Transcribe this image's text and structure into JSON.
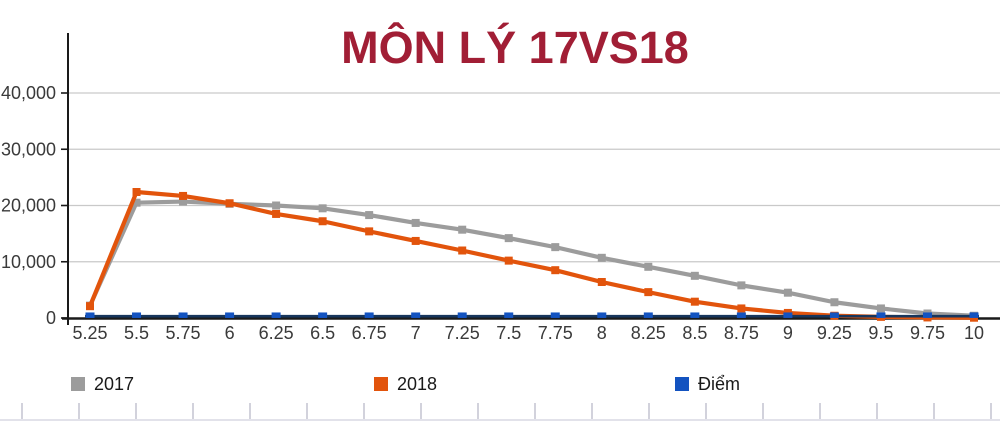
{
  "title": "MÔN LÝ 17VS18",
  "colors": {
    "title": "#A11E35",
    "series_2017": "#9C9C9C",
    "series_2018": "#E2540C",
    "series_diem_marker": "#1353C0",
    "series_diem_line": "#17365D",
    "axis": "#1a1a1a",
    "gridline": "#C9C9C9"
  },
  "legend": {
    "items": [
      {
        "label": "2017",
        "color": "#9C9C9C"
      },
      {
        "label": "2018",
        "color": "#E2540C"
      },
      {
        "label": "Điểm",
        "color": "#1353C0"
      }
    ]
  },
  "chart_data": {
    "type": "line",
    "title": "MÔN LÝ 17VS18",
    "xlabel": "",
    "ylabel": "",
    "grid": "horizontal",
    "legend_position": "bottom",
    "ylim": [
      0,
      50600
    ],
    "yticks": [
      0,
      10000,
      20000,
      30000,
      40000
    ],
    "ytick_labels": [
      "0",
      "10,000",
      "20,000",
      "30,000",
      "40,000"
    ],
    "categories": [
      "5.25",
      "5.5",
      "5.75",
      "6",
      "6.25",
      "6.5",
      "6.75",
      "7",
      "7.25",
      "7.5",
      "7.75",
      "8",
      "8.25",
      "8.5",
      "8.75",
      "9",
      "9.25",
      "9.5",
      "9.75",
      "10"
    ],
    "series": [
      {
        "name": "2017",
        "color": "#9C9C9C",
        "marker": "square",
        "values": [
          2200,
          20500,
          20700,
          20300,
          20000,
          19500,
          18300,
          16900,
          15700,
          14200,
          12600,
          10700,
          9100,
          7500,
          5800,
          4500,
          2800,
          1700,
          800,
          400
        ]
      },
      {
        "name": "2018",
        "color": "#E2540C",
        "marker": "square",
        "values": [
          2100,
          22400,
          21700,
          20400,
          18500,
          17200,
          15400,
          13700,
          12000,
          10200,
          8500,
          6400,
          4600,
          2900,
          1700,
          900,
          400,
          200,
          100,
          50
        ]
      },
      {
        "name": "Điểm",
        "color": "#1353C0",
        "line_color": "#17365D",
        "marker": "flat-square",
        "values": [
          5.25,
          5.5,
          5.75,
          6,
          6.25,
          6.5,
          6.75,
          7,
          7.25,
          7.5,
          7.75,
          8,
          8.25,
          8.5,
          8.75,
          9,
          9.25,
          9.5,
          9.75,
          10
        ]
      }
    ]
  }
}
